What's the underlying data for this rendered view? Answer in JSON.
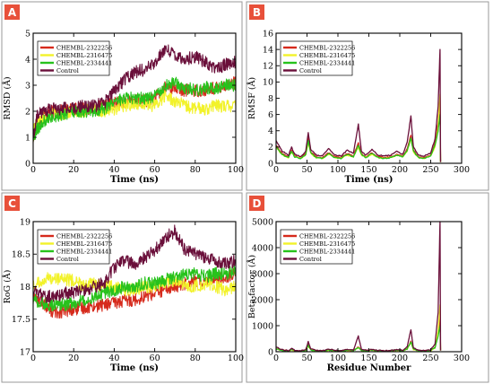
{
  "colors": {
    "CHEMBL-2322256": "#d62a1c",
    "CHEMBL-2316475": "#f2f22a",
    "CHEMBL-2334441": "#27c21c",
    "Control": "#6a0f3a"
  },
  "chart_data": [
    {
      "panel": "A",
      "type": "line",
      "xlabel": "Time (ns)",
      "ylabel": "RMSD (Å)",
      "xlim": [
        0,
        100
      ],
      "ylim": [
        0,
        5
      ],
      "xticks": [
        0,
        20,
        40,
        60,
        80,
        100
      ],
      "yticks": [
        0,
        1,
        2,
        3,
        4,
        5
      ],
      "legend": [
        "CHEMBL-2322256",
        "CHEMBL-2316475",
        "CHEMBL-2334441",
        "Control"
      ],
      "series": [
        {
          "name": "CHEMBL-2322256",
          "x": [
            0,
            2,
            5,
            10,
            15,
            20,
            25,
            30,
            35,
            40,
            45,
            50,
            55,
            60,
            65,
            70,
            75,
            80,
            85,
            90,
            95,
            100
          ],
          "y": [
            0.9,
            1.5,
            1.9,
            2.0,
            2.0,
            2.1,
            2.1,
            2.1,
            2.2,
            2.3,
            2.4,
            2.4,
            2.4,
            2.5,
            2.9,
            2.9,
            2.8,
            2.8,
            2.8,
            2.9,
            3.0,
            3.1
          ]
        },
        {
          "name": "CHEMBL-2316475",
          "x": [
            0,
            2,
            5,
            10,
            15,
            20,
            25,
            30,
            35,
            40,
            45,
            50,
            55,
            60,
            65,
            70,
            75,
            80,
            85,
            90,
            95,
            100
          ],
          "y": [
            1.2,
            1.6,
            1.8,
            1.9,
            1.9,
            2.0,
            2.0,
            2.1,
            2.0,
            2.1,
            2.2,
            2.3,
            2.3,
            2.2,
            2.6,
            2.4,
            2.2,
            2.1,
            2.1,
            2.2,
            2.2,
            2.2
          ]
        },
        {
          "name": "CHEMBL-2334441",
          "x": [
            0,
            2,
            5,
            10,
            15,
            20,
            25,
            30,
            35,
            40,
            45,
            50,
            55,
            60,
            65,
            70,
            75,
            80,
            85,
            90,
            95,
            100
          ],
          "y": [
            1.0,
            1.3,
            1.6,
            1.8,
            1.9,
            2.0,
            2.0,
            2.0,
            2.1,
            2.4,
            2.5,
            2.5,
            2.5,
            2.6,
            3.0,
            3.1,
            2.9,
            2.8,
            2.9,
            2.9,
            3.0,
            3.0
          ]
        },
        {
          "name": "Control",
          "x": [
            0,
            2,
            5,
            10,
            15,
            20,
            25,
            30,
            35,
            40,
            45,
            50,
            55,
            60,
            65,
            70,
            75,
            80,
            85,
            90,
            95,
            100
          ],
          "y": [
            1.0,
            1.8,
            2.0,
            2.1,
            2.1,
            2.1,
            2.2,
            2.2,
            2.3,
            2.8,
            3.2,
            3.5,
            3.6,
            3.8,
            4.4,
            4.2,
            4.0,
            4.1,
            3.9,
            3.6,
            3.8,
            3.9
          ]
        }
      ]
    },
    {
      "panel": "B",
      "type": "line",
      "xlabel": "Time (ns)",
      "ylabel": "RMSF (Å)",
      "xlim": [
        0,
        300
      ],
      "ylim": [
        0,
        16
      ],
      "xticks": [
        0,
        50,
        100,
        150,
        200,
        250,
        300
      ],
      "yticks": [
        0,
        2,
        4,
        6,
        8,
        10,
        12,
        14,
        16
      ],
      "legend": [
        "CHEMBL-2322256",
        "CHEMBL-2316475",
        "CHEMBL-2334441",
        "Control"
      ],
      "series": [
        {
          "name": "CHEMBL-2322256",
          "x": [
            0,
            10,
            20,
            25,
            30,
            40,
            48,
            52,
            56,
            65,
            75,
            85,
            95,
            105,
            115,
            125,
            133,
            138,
            145,
            155,
            165,
            175,
            185,
            195,
            205,
            212,
            218,
            222,
            230,
            240,
            250,
            257,
            262,
            265
          ],
          "y": [
            2.2,
            1.2,
            0.8,
            1.6,
            0.9,
            0.7,
            1.2,
            3.2,
            1.4,
            0.8,
            0.7,
            1.3,
            0.8,
            0.7,
            1.2,
            0.9,
            2.5,
            1.2,
            0.8,
            1.3,
            0.8,
            0.7,
            0.8,
            1.1,
            0.9,
            1.8,
            3.5,
            1.6,
            0.8,
            0.7,
            1.0,
            2.5,
            5.0,
            8.0
          ]
        },
        {
          "name": "CHEMBL-2316475",
          "x": [
            0,
            10,
            20,
            25,
            30,
            40,
            48,
            52,
            56,
            65,
            75,
            85,
            95,
            105,
            115,
            125,
            133,
            138,
            145,
            155,
            165,
            175,
            185,
            195,
            205,
            212,
            218,
            222,
            230,
            240,
            250,
            257,
            262,
            265
          ],
          "y": [
            2.0,
            1.0,
            0.7,
            1.4,
            0.8,
            0.6,
            1.0,
            2.6,
            1.2,
            0.7,
            0.6,
            1.1,
            0.7,
            0.6,
            1.0,
            0.8,
            2.0,
            1.0,
            0.7,
            1.1,
            0.7,
            0.6,
            0.7,
            1.0,
            0.8,
            1.5,
            3.0,
            1.4,
            0.7,
            0.6,
            0.9,
            2.0,
            4.5,
            8.5
          ]
        },
        {
          "name": "CHEMBL-2334441",
          "x": [
            0,
            10,
            20,
            25,
            30,
            40,
            48,
            52,
            56,
            65,
            75,
            85,
            95,
            105,
            115,
            125,
            133,
            138,
            145,
            155,
            165,
            175,
            185,
            195,
            205,
            212,
            218,
            222,
            230,
            240,
            250,
            257,
            262,
            265
          ],
          "y": [
            2.0,
            1.1,
            0.7,
            1.5,
            0.8,
            0.6,
            1.1,
            2.8,
            1.3,
            0.7,
            0.6,
            1.2,
            0.7,
            0.6,
            1.1,
            0.8,
            2.2,
            1.1,
            0.7,
            1.2,
            0.7,
            0.6,
            0.7,
            1.0,
            0.8,
            1.6,
            3.1,
            1.5,
            0.7,
            0.6,
            0.9,
            2.2,
            4.0,
            6.0
          ]
        },
        {
          "name": "Control",
          "x": [
            0,
            10,
            20,
            25,
            30,
            40,
            48,
            52,
            56,
            65,
            75,
            85,
            95,
            105,
            115,
            125,
            133,
            138,
            145,
            155,
            165,
            175,
            185,
            195,
            205,
            212,
            218,
            222,
            230,
            240,
            250,
            257,
            262,
            265
          ],
          "y": [
            2.8,
            1.5,
            1.0,
            2.0,
            1.1,
            0.8,
            1.5,
            3.8,
            1.7,
            1.0,
            0.9,
            1.8,
            1.0,
            0.9,
            1.6,
            1.2,
            4.8,
            1.5,
            1.0,
            1.7,
            1.0,
            0.9,
            1.0,
            1.5,
            1.1,
            2.6,
            5.8,
            2.0,
            1.0,
            0.9,
            1.3,
            3.0,
            7.0,
            14.0
          ]
        }
      ]
    },
    {
      "panel": "C",
      "type": "line",
      "xlabel": "Time (ns)",
      "ylabel": "RoG (Å)",
      "xlim": [
        0,
        100
      ],
      "ylim": [
        17,
        19
      ],
      "xticks": [
        0,
        20,
        40,
        60,
        80,
        100
      ],
      "yticks": [
        17,
        17.5,
        18,
        18.5,
        19
      ],
      "legend": [
        "CHEMBL-2322256",
        "CHEMBL-2316475",
        "CHEMBL-2334441",
        "Control"
      ],
      "series": [
        {
          "name": "CHEMBL-2322256",
          "x": [
            0,
            5,
            10,
            15,
            20,
            25,
            30,
            35,
            40,
            45,
            50,
            55,
            60,
            65,
            70,
            75,
            80,
            85,
            90,
            95,
            100
          ],
          "y": [
            17.85,
            17.75,
            17.6,
            17.62,
            17.65,
            17.68,
            17.7,
            17.72,
            17.75,
            17.78,
            17.8,
            17.85,
            17.9,
            17.95,
            18.0,
            18.05,
            18.1,
            18.1,
            18.12,
            18.15,
            18.2
          ]
        },
        {
          "name": "CHEMBL-2316475",
          "x": [
            0,
            5,
            10,
            15,
            20,
            25,
            30,
            35,
            40,
            45,
            50,
            55,
            60,
            65,
            70,
            75,
            80,
            85,
            90,
            95,
            100
          ],
          "y": [
            18.0,
            18.1,
            18.15,
            18.1,
            18.1,
            18.0,
            18.05,
            18.0,
            18.0,
            17.95,
            17.95,
            18.0,
            18.0,
            18.05,
            18.1,
            18.0,
            18.0,
            18.05,
            18.0,
            17.95,
            18.0
          ]
        },
        {
          "name": "CHEMBL-2334441",
          "x": [
            0,
            5,
            10,
            15,
            20,
            25,
            30,
            35,
            40,
            45,
            50,
            55,
            60,
            65,
            70,
            75,
            80,
            85,
            90,
            95,
            100
          ],
          "y": [
            17.8,
            17.75,
            17.7,
            17.72,
            17.75,
            17.8,
            17.85,
            17.9,
            17.95,
            18.0,
            18.0,
            18.05,
            18.05,
            18.1,
            18.15,
            18.2,
            18.2,
            18.15,
            18.2,
            18.2,
            18.25
          ]
        },
        {
          "name": "Control",
          "x": [
            0,
            5,
            10,
            15,
            20,
            25,
            30,
            35,
            40,
            45,
            50,
            55,
            60,
            65,
            70,
            75,
            80,
            85,
            90,
            95,
            100
          ],
          "y": [
            17.95,
            17.85,
            17.85,
            17.9,
            17.9,
            17.95,
            18.0,
            18.05,
            18.3,
            18.4,
            18.35,
            18.45,
            18.55,
            18.75,
            18.85,
            18.55,
            18.5,
            18.45,
            18.4,
            18.35,
            18.4
          ]
        }
      ]
    },
    {
      "panel": "D",
      "type": "line",
      "xlabel": "Residue Number",
      "ylabel": "Beta-factor (Å)",
      "xlim": [
        0,
        300
      ],
      "ylim": [
        0,
        5000
      ],
      "xticks": [
        0,
        50,
        100,
        150,
        200,
        250,
        300
      ],
      "yticks": [
        0,
        1000,
        2000,
        3000,
        4000,
        5000
      ],
      "legend": [
        "CHEMBL-2322256",
        "CHEMBL-2316475",
        "CHEMBL-2334441",
        "Control"
      ],
      "series": [
        {
          "name": "CHEMBL-2322256",
          "x": [
            0,
            10,
            20,
            25,
            30,
            40,
            48,
            52,
            56,
            65,
            75,
            85,
            95,
            105,
            115,
            125,
            133,
            138,
            145,
            155,
            165,
            175,
            185,
            195,
            205,
            212,
            218,
            222,
            230,
            240,
            250,
            257,
            262,
            265
          ],
          "y": [
            120,
            60,
            30,
            90,
            40,
            25,
            60,
            280,
            80,
            40,
            30,
            70,
            40,
            30,
            60,
            45,
            180,
            60,
            40,
            70,
            40,
            30,
            40,
            55,
            45,
            120,
            400,
            100,
            40,
            30,
            50,
            180,
            700,
            1400
          ]
        },
        {
          "name": "CHEMBL-2316475",
          "x": [
            0,
            10,
            20,
            25,
            30,
            40,
            48,
            52,
            56,
            65,
            75,
            85,
            95,
            105,
            115,
            125,
            133,
            138,
            145,
            155,
            165,
            175,
            185,
            195,
            205,
            212,
            218,
            222,
            230,
            240,
            250,
            257,
            262,
            265
          ],
          "y": [
            110,
            50,
            25,
            80,
            35,
            20,
            50,
            220,
            70,
            35,
            25,
            60,
            35,
            25,
            55,
            40,
            150,
            55,
            35,
            60,
            35,
            25,
            35,
            50,
            40,
            100,
            350,
            90,
            35,
            25,
            45,
            150,
            800,
            1800
          ]
        },
        {
          "name": "CHEMBL-2334441",
          "x": [
            0,
            10,
            20,
            25,
            30,
            40,
            48,
            52,
            56,
            65,
            75,
            85,
            95,
            105,
            115,
            125,
            133,
            138,
            145,
            155,
            165,
            175,
            185,
            195,
            205,
            212,
            218,
            222,
            230,
            240,
            250,
            257,
            262,
            265
          ],
          "y": [
            115,
            55,
            28,
            85,
            38,
            22,
            55,
            240,
            75,
            38,
            28,
            65,
            38,
            28,
            58,
            42,
            160,
            58,
            38,
            65,
            38,
            28,
            38,
            52,
            42,
            110,
            380,
            95,
            38,
            28,
            48,
            160,
            600,
            1000
          ]
        },
        {
          "name": "Control",
          "x": [
            0,
            10,
            20,
            25,
            30,
            40,
            48,
            52,
            56,
            65,
            75,
            85,
            95,
            105,
            115,
            125,
            133,
            138,
            145,
            155,
            165,
            175,
            185,
            195,
            205,
            212,
            218,
            222,
            230,
            240,
            250,
            257,
            262,
            265
          ],
          "y": [
            180,
            80,
            40,
            130,
            55,
            30,
            80,
            380,
            110,
            55,
            40,
            100,
            55,
            40,
            90,
            60,
            600,
            90,
            55,
            100,
            55,
            40,
            55,
            80,
            60,
            200,
            850,
            150,
            55,
            40,
            70,
            300,
            1500,
            5000
          ]
        }
      ]
    }
  ]
}
